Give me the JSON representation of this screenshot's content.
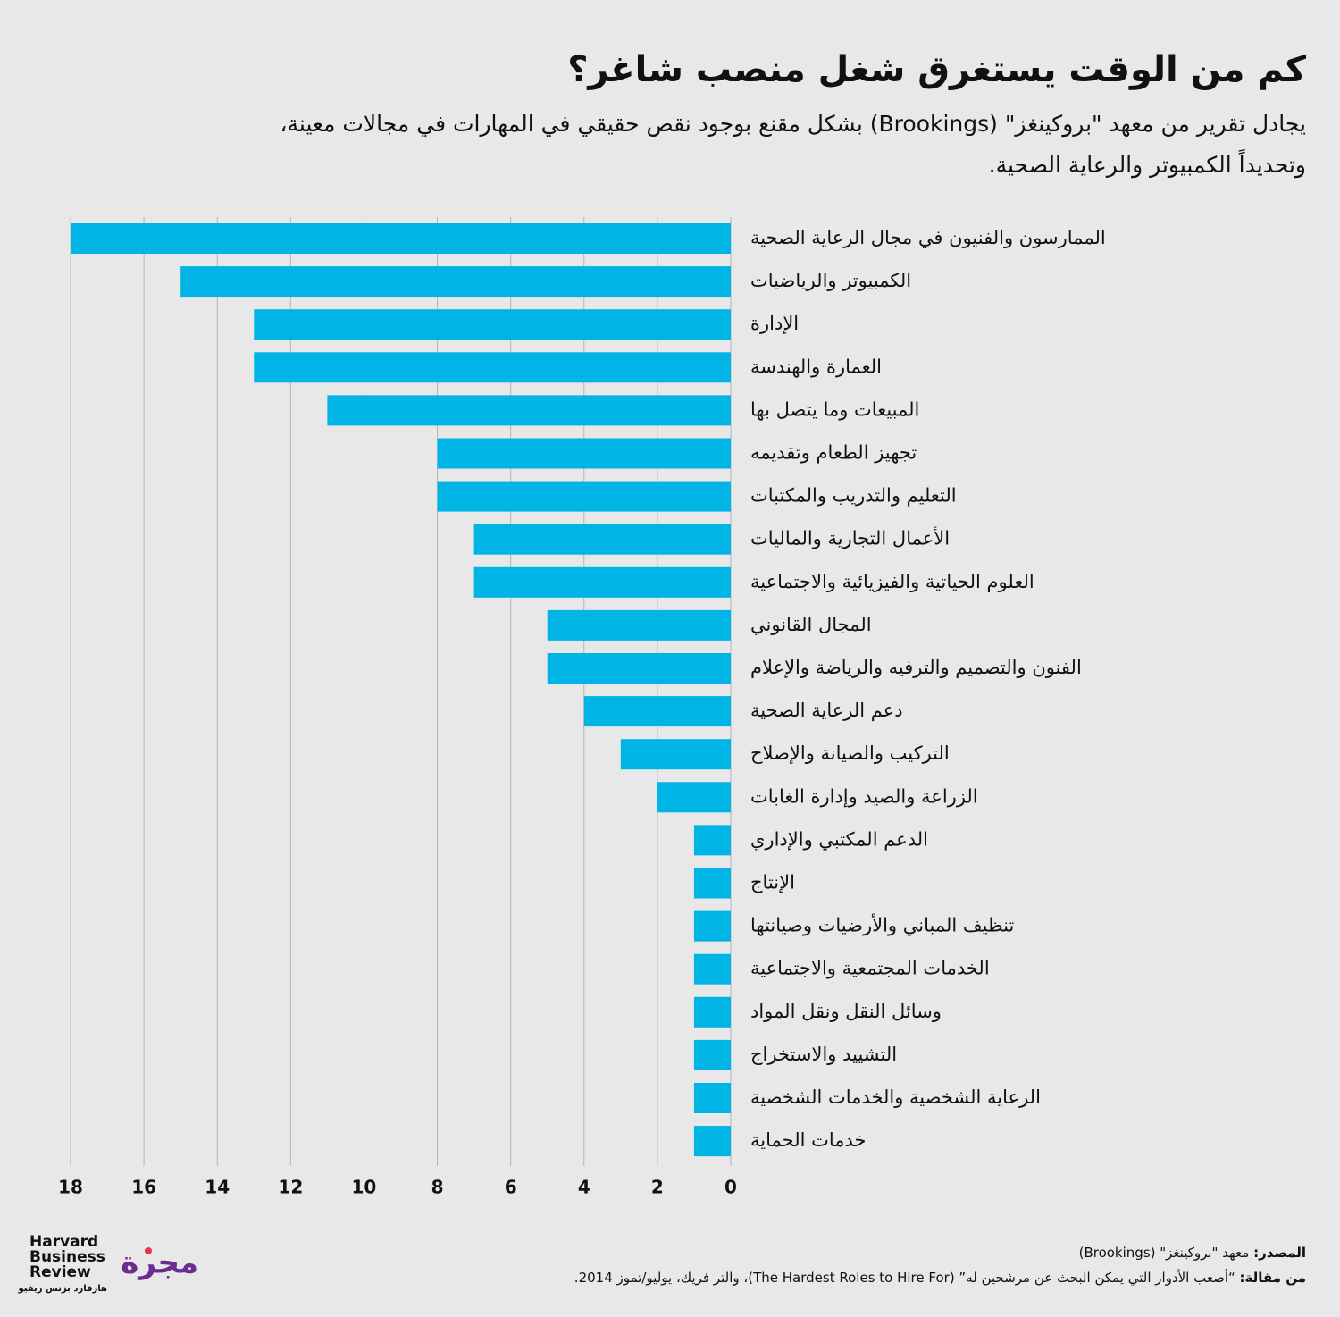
{
  "chart_data": {
    "type": "bar",
    "orientation": "horizontal",
    "title": "كم من الوقت يستغرق شغل منصب شاغر؟",
    "subtitle": [
      "يجادل تقرير من معهد \"بروكينغز\" (Brookings) بشكل مقنع بوجود نقص حقيقي في المهارات في مجالات معينة،",
      "وتحديداً الكمبيوتر والرعاية الصحية."
    ],
    "categories": [
      "الممارسون والفنيون في مجال الرعاية الصحية",
      "الكمبيوتر والرياضيات",
      "الإدارة",
      "العمارة والهندسة",
      "المبيعات وما يتصل بها",
      "تجهيز الطعام وتقديمه",
      "التعليم والتدريب والمكتبات",
      "الأعمال التجارية والماليات",
      "العلوم الحياتية والفيزيائية والاجتماعية",
      "المجال القانوني",
      "الفنون والتصميم والترفيه والرياضة والإعلام",
      "دعم الرعاية الصحية",
      "التركيب والصيانة والإصلاح",
      "الزراعة والصيد وإدارة الغابات",
      "الدعم المكتبي والإداري",
      "الإنتاج",
      "تنظيف المباني والأرضيات وصيانتها",
      "الخدمات المجتمعية والاجتماعية",
      "وسائل النقل ونقل المواد",
      "التشييد والاستخراج",
      "الرعاية الشخصية والخدمات الشخصية",
      "خدمات الحماية"
    ],
    "values": [
      18,
      15,
      13,
      13,
      11,
      8,
      8,
      7,
      7,
      5,
      5,
      4,
      3,
      2,
      1,
      1,
      1,
      1,
      1,
      1,
      1,
      1
    ],
    "color": "#00b4e6",
    "xlim": [
      0,
      18
    ],
    "xticks": [
      0,
      2,
      4,
      6,
      8,
      10,
      12,
      14,
      16,
      18
    ],
    "x_reversed": true,
    "grid": true
  },
  "footer": {
    "source_label": "المصدر:",
    "source_text": "معهد \"بروكينغز\" (Brookings)",
    "article_label": "من مقالة:",
    "article_text": "“أصعب الأدوار التي يمكن البحث عن مرشحين له” (The Hardest Roles to Hire For)، والتر فريك، يوليو/تموز 2014."
  },
  "logos": {
    "hbr": [
      "Harvard",
      "Business",
      "Review"
    ],
    "hbr_arabic": "هارفارد بزنس ريفيو",
    "majarra": "مجرة"
  }
}
